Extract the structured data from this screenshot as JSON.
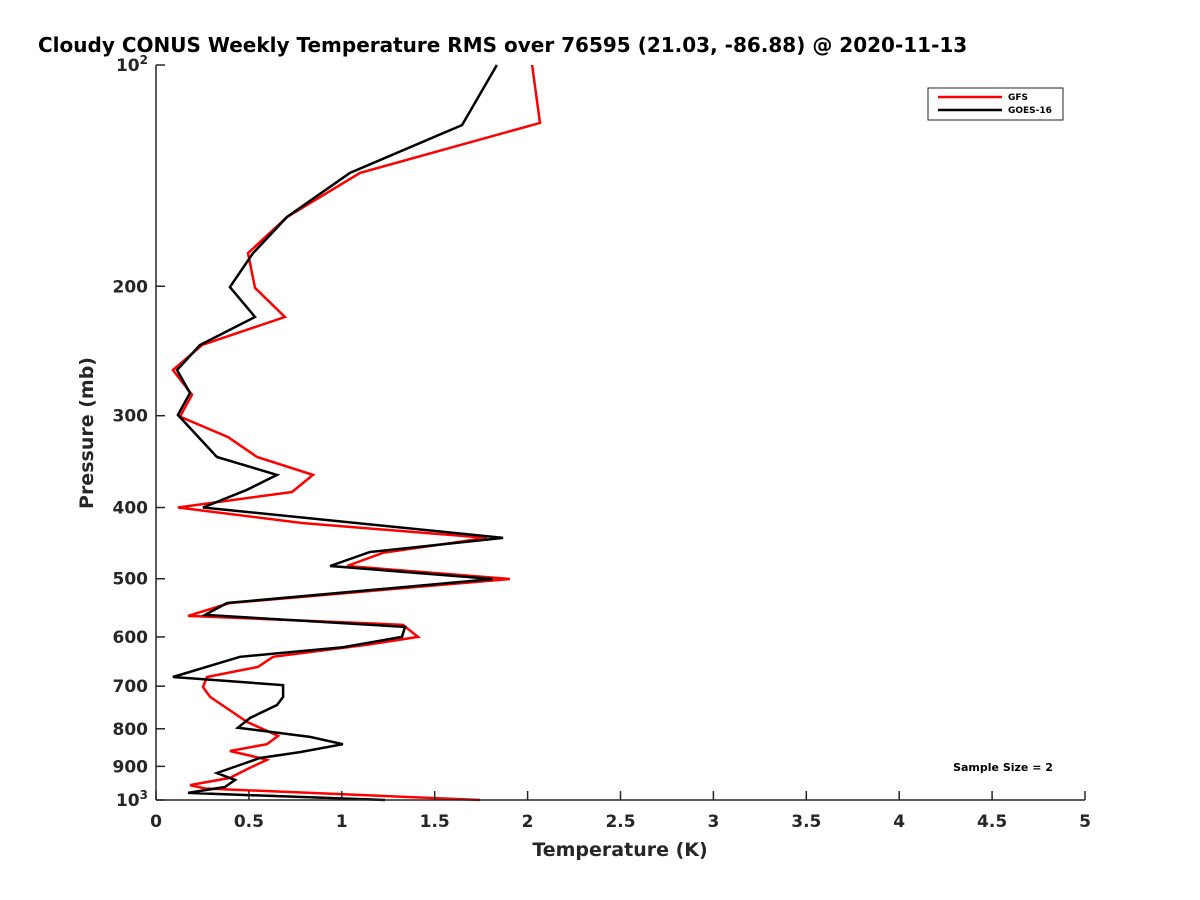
{
  "chart_data": {
    "type": "line",
    "title": "Cloudy CONUS Weekly Temperature RMS over 76595 (21.03, -86.88) @ 2020-11-13",
    "xlabel": "Temperature (K)",
    "ylabel": "Pressure (mb)",
    "xlim": [
      0,
      5
    ],
    "ylim": [
      100,
      1000
    ],
    "yscale": "log",
    "yreversed": true,
    "grid": false,
    "legend_placement": "top-right",
    "xticks": [
      "0",
      "0.5",
      "1",
      "1.5",
      "2",
      "2.5",
      "3",
      "3.5",
      "4",
      "4.5",
      "5"
    ],
    "xtick_values": [
      0,
      0.5,
      1,
      1.5,
      2,
      2.5,
      3,
      3.5,
      4,
      4.5,
      5
    ],
    "yticks": [
      {
        "value": 100,
        "base": "10",
        "exp": "2"
      },
      {
        "value": 200,
        "label": "200"
      },
      {
        "value": 300,
        "label": "300"
      },
      {
        "value": 400,
        "label": "400"
      },
      {
        "value": 500,
        "label": "500"
      },
      {
        "value": 600,
        "label": "600"
      },
      {
        "value": 700,
        "label": "700"
      },
      {
        "value": 800,
        "label": "800"
      },
      {
        "value": 900,
        "label": "900"
      },
      {
        "value": 1000,
        "base": "10",
        "exp": "3"
      }
    ],
    "annotation": "Sample Size = 2",
    "series": [
      {
        "name": "GFS",
        "color": "#ff0000",
        "points": [
          [
            2.024,
            100
          ],
          [
            2.067,
            119.9
          ],
          [
            1.098,
            140.2
          ],
          [
            0.705,
            161
          ],
          [
            0.495,
            180.3
          ],
          [
            0.533,
            201
          ],
          [
            0.694,
            220.2
          ],
          [
            0.248,
            240.4
          ],
          [
            0.091,
            260
          ],
          [
            0.194,
            281
          ],
          [
            0.129,
            301
          ],
          [
            0.388,
            320.8
          ],
          [
            0.544,
            341.5
          ],
          [
            0.845,
            361.2
          ],
          [
            0.732,
            381
          ],
          [
            0.118,
            400
          ],
          [
            0.791,
            420
          ],
          [
            1.781,
            440
          ],
          [
            1.222,
            461
          ],
          [
            1.028,
            480.4
          ],
          [
            1.905,
            500.4
          ],
          [
            0.398,
            539.5
          ],
          [
            0.172,
            561.8
          ],
          [
            1.329,
            577.6
          ],
          [
            1.41,
            600
          ],
          [
            1.136,
            615
          ],
          [
            0.63,
            638.6
          ],
          [
            0.549,
            659
          ],
          [
            0.274,
            680.3
          ],
          [
            0.253,
            702
          ],
          [
            0.291,
            724
          ],
          [
            0.49,
            783
          ],
          [
            0.657,
            818
          ],
          [
            0.597,
            839.5
          ],
          [
            0.398,
            857.6
          ],
          [
            0.56,
            876.6
          ],
          [
            0.597,
            882
          ],
          [
            0.506,
            904
          ],
          [
            0.398,
            933
          ],
          [
            0.183,
            954.4
          ],
          [
            0.264,
            964.7
          ],
          [
            1.744,
            1000
          ]
        ]
      },
      {
        "name": "GOES-16",
        "color": "#000000",
        "points": [
          [
            1.835,
            100
          ],
          [
            1.647,
            120.7
          ],
          [
            1.044,
            140.2
          ],
          [
            0.705,
            161
          ],
          [
            0.522,
            180.3
          ],
          [
            0.398,
            200.5
          ],
          [
            0.533,
            220.2
          ],
          [
            0.237,
            240.4
          ],
          [
            0.113,
            260
          ],
          [
            0.183,
            279.4
          ],
          [
            0.118,
            299.3
          ],
          [
            0.328,
            341.5
          ],
          [
            0.651,
            361.2
          ],
          [
            0.49,
            378.4
          ],
          [
            0.253,
            400
          ],
          [
            1.868,
            440
          ],
          [
            1.152,
            459.8
          ],
          [
            0.937,
            480.4
          ],
          [
            1.814,
            500.4
          ],
          [
            0.382,
            539.5
          ],
          [
            0.264,
            560
          ],
          [
            1.34,
            581.5
          ],
          [
            1.324,
            600
          ],
          [
            1.006,
            619.5
          ],
          [
            0.452,
            638.6
          ],
          [
            0.091,
            680.3
          ],
          [
            0.684,
            697.7
          ],
          [
            0.684,
            724
          ],
          [
            0.651,
            742.5
          ],
          [
            0.506,
            773.4
          ],
          [
            0.441,
            797.4
          ],
          [
            0.829,
            820.6
          ],
          [
            1.006,
            839.5
          ],
          [
            0.775,
            860.7
          ],
          [
            0.56,
            876.6
          ],
          [
            0.328,
            919
          ],
          [
            0.425,
            939.3
          ],
          [
            0.371,
            960
          ],
          [
            0.172,
            978
          ],
          [
            1.233,
            1000
          ]
        ]
      }
    ]
  }
}
